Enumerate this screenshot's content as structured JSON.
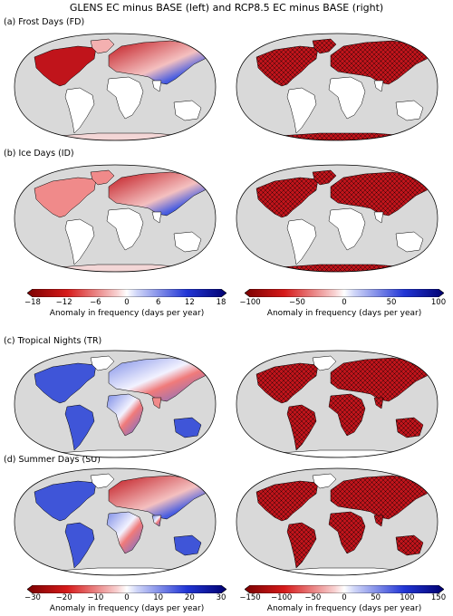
{
  "title": "GLENS EC minus BASE (left) and RCP8.5 EC minus BASE (right)",
  "panels": [
    {
      "label": "(a) Frost Days (FD)"
    },
    {
      "label": "(b) Ice Days (ID)"
    },
    {
      "label": "(c) Tropical Nights (TR)"
    },
    {
      "label": "(d) Summer Days (SU)"
    }
  ],
  "colorbars": {
    "top_left": {
      "ticks": [
        "−18",
        "−12",
        "−6",
        "0",
        "6",
        "12",
        "18"
      ],
      "label": "Anomaly in frequency (days per year)"
    },
    "top_right": {
      "ticks": [
        "−100",
        "−50",
        "0",
        "50",
        "100"
      ],
      "label": "Anomaly in frequency (days per year)"
    },
    "bottom_left": {
      "ticks": [
        "−30",
        "−20",
        "−10",
        "0",
        "10",
        "20",
        "30"
      ],
      "label": "Anomaly in frequency (days per year)"
    },
    "bottom_right": {
      "ticks": [
        "−150",
        "−100",
        "−50",
        "0",
        "50",
        "100",
        "150"
      ],
      "label": "Anomaly in frequency (days per year)"
    }
  },
  "colors": {
    "ocean": "#d9d9d9",
    "land": "#ffffff",
    "warm": "#c0141b",
    "cool": "#1f35c9"
  }
}
